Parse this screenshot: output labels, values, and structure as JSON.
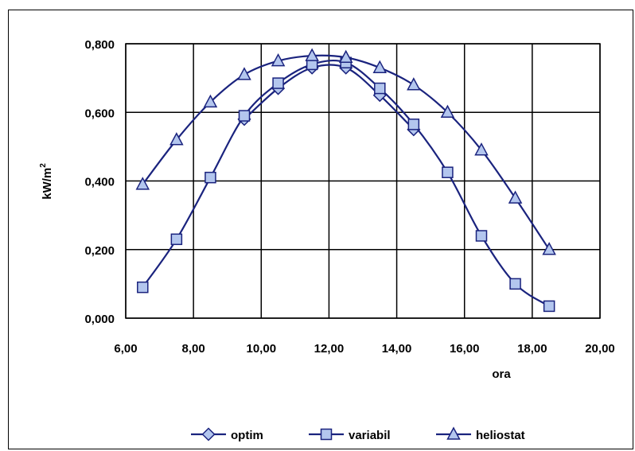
{
  "chart_data": {
    "type": "line",
    "xlabel": "ora",
    "ylabel": "kW/m",
    "ylabel_sup": "2",
    "xlim": [
      6,
      20
    ],
    "ylim": [
      0,
      0.8
    ],
    "x_ticks": [
      "6,00",
      "8,00",
      "10,00",
      "12,00",
      "14,00",
      "16,00",
      "18,00",
      "20,00"
    ],
    "y_ticks": [
      "0,000",
      "0,200",
      "0,400",
      "0,600",
      "0,800"
    ],
    "grid": true,
    "legend_position": "bottom",
    "line_color": "#1a237e",
    "marker_fill": "#b3c6ee",
    "series": [
      {
        "name": "optim",
        "marker": "diamond",
        "x": [
          9.5,
          10.5,
          11.5,
          12.5,
          13.5,
          14.5
        ],
        "y": [
          0.58,
          0.67,
          0.73,
          0.73,
          0.65,
          0.55
        ]
      },
      {
        "name": "variabil",
        "marker": "square",
        "x": [
          6.5,
          7.5,
          8.5,
          9.5,
          10.5,
          11.5,
          12.5,
          13.5,
          14.5,
          15.5,
          16.5,
          17.5,
          18.5
        ],
        "y": [
          0.09,
          0.23,
          0.41,
          0.59,
          0.685,
          0.74,
          0.745,
          0.67,
          0.565,
          0.425,
          0.24,
          0.1,
          0.035
        ]
      },
      {
        "name": "heliostat",
        "marker": "triangle",
        "x": [
          6.5,
          7.5,
          8.5,
          9.5,
          10.5,
          11.5,
          12.5,
          13.5,
          14.5,
          15.5,
          16.5,
          17.5,
          18.5
        ],
        "y": [
          0.39,
          0.52,
          0.63,
          0.71,
          0.75,
          0.765,
          0.76,
          0.73,
          0.68,
          0.6,
          0.49,
          0.35,
          0.2
        ]
      }
    ]
  }
}
